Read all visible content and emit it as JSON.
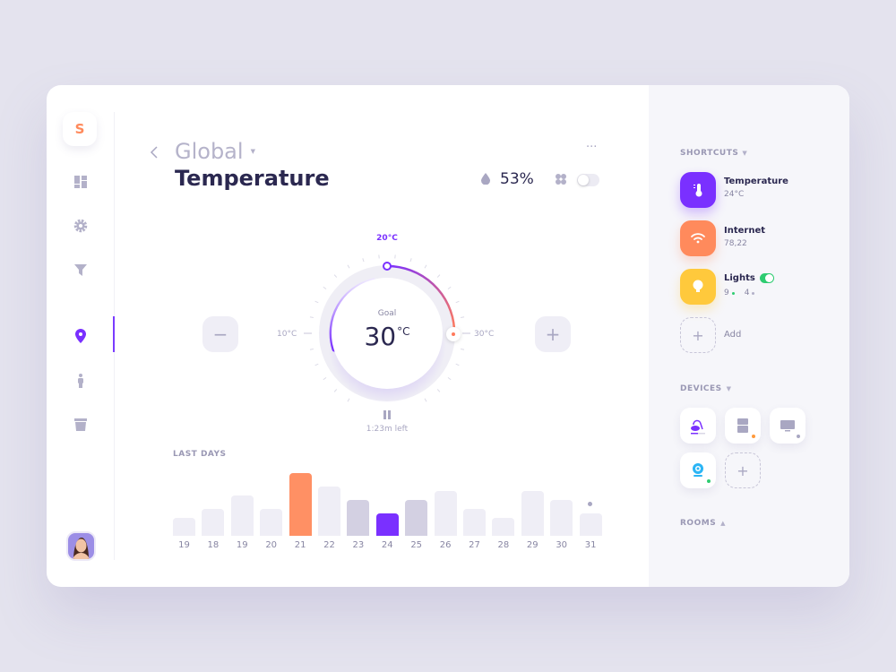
{
  "sidebar": {
    "logo": "S",
    "items": [
      {
        "icon": "dashboard-icon"
      },
      {
        "icon": "gear-icon"
      },
      {
        "icon": "filter-icon"
      },
      {
        "icon": "location-pin-icon",
        "active": true
      },
      {
        "icon": "person-icon"
      },
      {
        "icon": "trash-icon"
      }
    ]
  },
  "header": {
    "breadcrumb": "Global",
    "title": "Temperature",
    "humidity": "53%",
    "fan_on": false,
    "more": "···"
  },
  "dial": {
    "current": "20°C",
    "min": "10°C",
    "max": "30°C",
    "goal_label": "Goal",
    "goal_value": "30",
    "goal_unit": "°C",
    "time_left": "1:23m left",
    "minus": "−",
    "plus": "+"
  },
  "chart_data": {
    "type": "bar",
    "title": "LAST DAYS",
    "categories": [
      "19",
      "18",
      "19",
      "20",
      "21",
      "22",
      "23",
      "24",
      "25",
      "26",
      "27",
      "28",
      "29",
      "30",
      "31"
    ],
    "values": [
      20,
      30,
      45,
      30,
      70,
      55,
      40,
      25,
      40,
      50,
      30,
      20,
      50,
      40,
      25
    ],
    "highlight": {
      "21": "#ff9064",
      "23": "#d3d0e2",
      "24": "#7a30ff",
      "25": "#d3d0e2"
    },
    "default_color": "#efeef6"
  },
  "shortcuts": {
    "label": "SHORTCUTS",
    "items": [
      {
        "name": "Temperature",
        "value": "24°C",
        "color": "#7a30ff",
        "icon": "thermometer-icon"
      },
      {
        "name": "Internet",
        "value": "78,22",
        "color": "#ff8a5c",
        "icon": "wifi-icon"
      },
      {
        "name": "Lights",
        "value_a": "9",
        "value_b": "4",
        "color": "#ffc93c",
        "icon": "bulb-icon",
        "toggle": true
      }
    ],
    "add": "Add"
  },
  "devices": {
    "label": "DEVICES",
    "items": [
      {
        "icon": "vacuum-icon"
      },
      {
        "icon": "fridge-icon",
        "status": "#ff9a3c"
      },
      {
        "icon": "tv-icon",
        "status": "#a9a7c2"
      },
      {
        "icon": "camera-icon",
        "status": "#2ecc71"
      }
    ]
  },
  "rooms": {
    "label": "ROOMS"
  },
  "colors": {
    "accent": "#7a30ff",
    "orange": "#ff8a5c",
    "yellow": "#ffc93c",
    "green": "#2ecc71"
  }
}
